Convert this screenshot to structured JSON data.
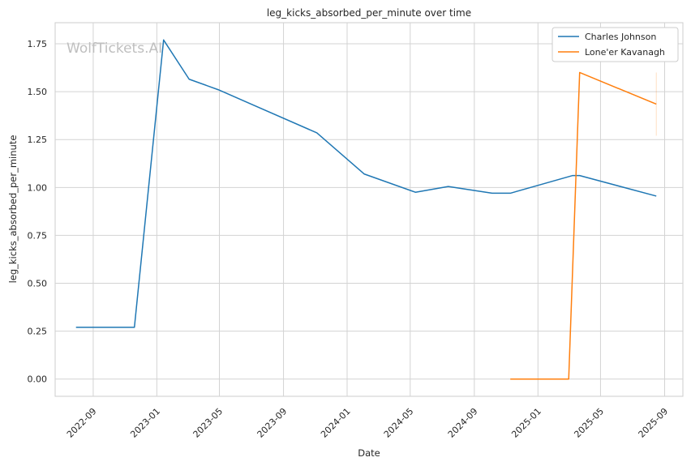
{
  "chart_data": {
    "type": "line",
    "title": "leg_kicks_absorbed_per_minute over time",
    "xlabel": "Date",
    "ylabel": "leg_kicks_absorbed_per_minute",
    "watermark": "WolfTickets.AI",
    "x_ticks": [
      "2022-09",
      "2023-01",
      "2023-05",
      "2023-09",
      "2024-01",
      "2024-05",
      "2024-09",
      "2025-01",
      "2025-05",
      "2025-09"
    ],
    "y_ticks": [
      "0.00",
      "0.25",
      "0.50",
      "0.75",
      "1.00",
      "1.25",
      "1.50",
      "1.75"
    ],
    "xlim": [
      "2022-06-20",
      "2025-10-06"
    ],
    "ylim": [
      -0.09,
      1.86
    ],
    "grid": true,
    "legend_position": "top-right",
    "series": [
      {
        "name": "Charles Johnson",
        "color": "#1f77b4",
        "points": [
          {
            "x": "2022-07-30",
            "y": 0.27
          },
          {
            "x": "2022-11-19",
            "y": 0.27
          },
          {
            "x": "2023-01-14",
            "y": 1.77
          },
          {
            "x": "2023-03-04",
            "y": 1.565
          },
          {
            "x": "2023-04-29",
            "y": 1.51
          },
          {
            "x": "2023-11-04",
            "y": 1.285
          },
          {
            "x": "2024-02-03",
            "y": 1.07
          },
          {
            "x": "2024-05-11",
            "y": 0.975
          },
          {
            "x": "2024-07-13",
            "y": 1.005
          },
          {
            "x": "2024-10-05",
            "y": 0.97
          },
          {
            "x": "2024-11-09",
            "y": 0.97
          },
          {
            "x": "2025-03-08",
            "y": 1.062
          },
          {
            "x": "2025-03-22",
            "y": 1.062
          },
          {
            "x": "2025-08-16",
            "y": 0.955
          }
        ]
      },
      {
        "name": "Lone'er Kavanagh",
        "color": "#ff7f0e",
        "points": [
          {
            "x": "2024-11-09",
            "y": 0.0
          },
          {
            "x": "2025-03-01",
            "y": 0.0
          },
          {
            "x": "2025-03-22",
            "y": 1.6
          },
          {
            "x": "2025-08-16",
            "y": 1.435
          }
        ],
        "error_band": {
          "x": "2025-08-16",
          "low": 1.27,
          "high": 1.6
        }
      }
    ]
  }
}
